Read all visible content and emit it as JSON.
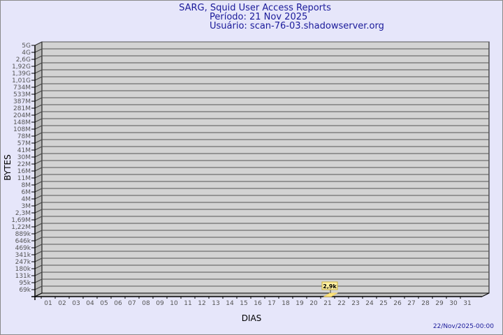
{
  "header": {
    "title": "SARG, Squid User Access Reports",
    "period": "Período: 21 Nov 2025",
    "user": "Usuário: scan-76-03.shadowserver.org"
  },
  "footer": {
    "timestamp": "22/Nov/2025-00:00"
  },
  "colors": {
    "title": "#1a1a9a",
    "background": "#e6e6fa",
    "wall": "#d3d3d3",
    "bar": "#ffe680"
  },
  "chart_data": {
    "type": "bar",
    "title": "SARG, Squid User Access Reports",
    "xlabel": "DIAS",
    "ylabel": "BYTES",
    "y_scale": "log",
    "grid": true,
    "y_tick_labels": [
      "5G",
      "4G",
      "2,6G",
      "1,92G",
      "1,39G",
      "1,01G",
      "734M",
      "533M",
      "387M",
      "281M",
      "204M",
      "148M",
      "108M",
      "78M",
      "57M",
      "41M",
      "30M",
      "22M",
      "16M",
      "11M",
      "8M",
      "6M",
      "4M",
      "3M",
      "2,3M",
      "1,69M",
      "1,22M",
      "889k",
      "646k",
      "469k",
      "341k",
      "247k",
      "180k",
      "131k",
      "95k",
      "69k"
    ],
    "categories": [
      "01",
      "02",
      "03",
      "04",
      "05",
      "06",
      "07",
      "08",
      "09",
      "10",
      "11",
      "12",
      "13",
      "14",
      "15",
      "16",
      "17",
      "18",
      "19",
      "20",
      "21",
      "22",
      "23",
      "24",
      "25",
      "26",
      "27",
      "28",
      "29",
      "30",
      "31"
    ],
    "values": [
      null,
      null,
      null,
      null,
      null,
      null,
      null,
      null,
      null,
      null,
      null,
      null,
      null,
      null,
      null,
      null,
      null,
      null,
      null,
      null,
      2900,
      null,
      null,
      null,
      null,
      null,
      null,
      null,
      null,
      null,
      null
    ],
    "data_labels": {
      "21": "2,9k"
    }
  }
}
